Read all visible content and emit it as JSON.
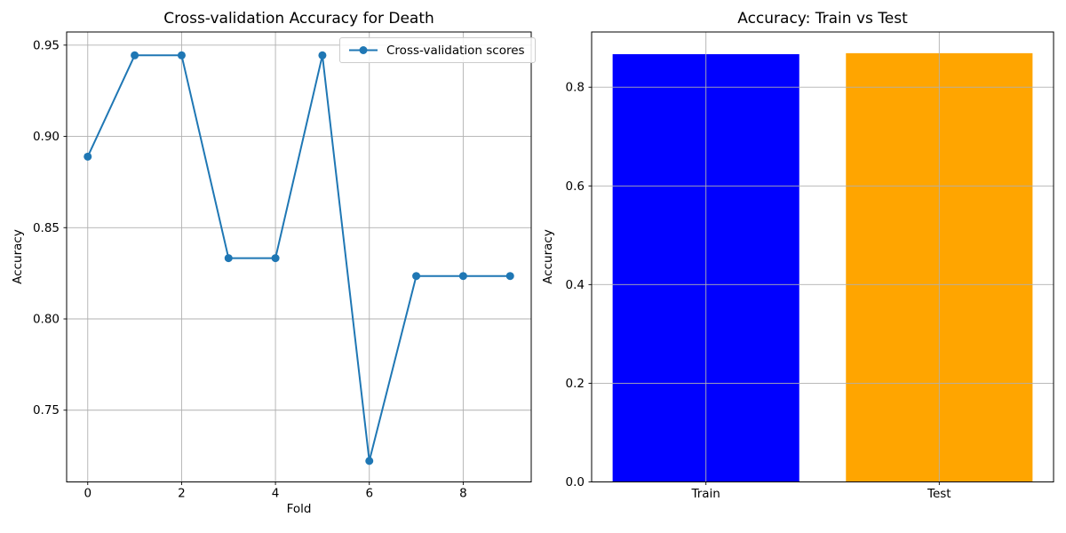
{
  "figure": {
    "background": "#ffffff",
    "grid_color": "#b0b0b0",
    "spine_color": "#000000",
    "text_color": "#000000"
  },
  "chart_data": [
    {
      "type": "line",
      "title": "Cross-validation Accuracy for Death",
      "xlabel": "Fold",
      "ylabel": "Accuracy",
      "legend": [
        "Cross-validation scores"
      ],
      "legend_loc": "upper right",
      "line_color": "#1f77b4",
      "marker": "o",
      "x": [
        0,
        1,
        2,
        3,
        4,
        5,
        6,
        7,
        8,
        9
      ],
      "values": [
        0.8889,
        0.9444,
        0.9444,
        0.8333,
        0.8333,
        0.9444,
        0.7222,
        0.8235,
        0.8235,
        0.8235
      ],
      "xlim": [
        -0.45,
        9.45
      ],
      "ylim": [
        0.7107,
        0.9572
      ],
      "xticks": [
        0,
        2,
        4,
        6,
        8
      ],
      "xticklabels": [
        "0",
        "2",
        "4",
        "6",
        "8"
      ],
      "yticks": [
        0.75,
        0.8,
        0.85,
        0.9,
        0.95
      ],
      "yticklabels": [
        "0.75",
        "0.80",
        "0.85",
        "0.90",
        "0.95"
      ],
      "grid": true
    },
    {
      "type": "bar",
      "title": "Accuracy: Train vs Test",
      "xlabel": "",
      "ylabel": "Accuracy",
      "categories": [
        "Train",
        "Test"
      ],
      "values": [
        0.867,
        0.869
      ],
      "bar_colors": [
        "#0000ff",
        "#ffa500"
      ],
      "bar_width": 0.8,
      "xlim": [
        -0.49,
        1.49
      ],
      "ylim": [
        0,
        0.912
      ],
      "yticks": [
        0.0,
        0.2,
        0.4,
        0.6,
        0.8
      ],
      "yticklabels": [
        "0.0",
        "0.2",
        "0.4",
        "0.6",
        "0.8"
      ],
      "grid": true
    }
  ]
}
